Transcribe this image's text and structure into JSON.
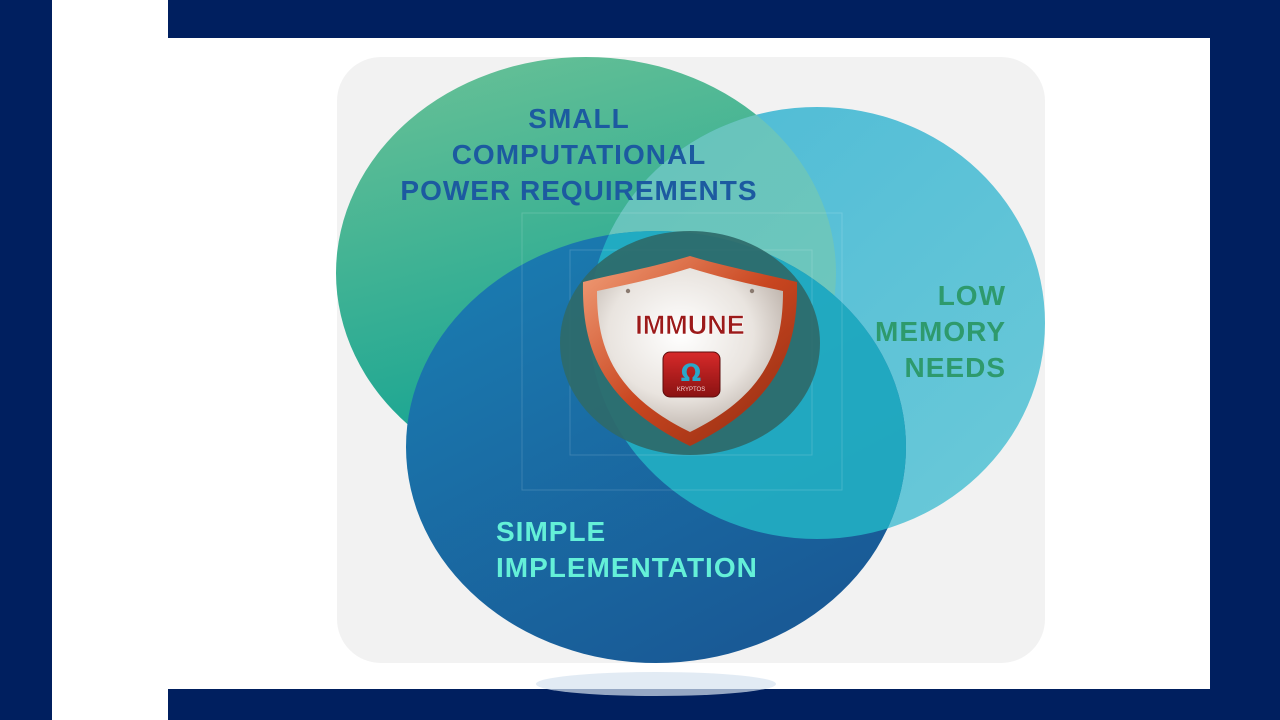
{
  "diagram": {
    "colors": {
      "frame": "#001f5f",
      "panel": "#f2f2f2",
      "circle_power_top": "#5fbe96",
      "circle_power_bottom": "#0fa394",
      "circle_memory": "#4ab9d2",
      "circle_simple": "#1a6fad",
      "shield_text": "#9c1a1a",
      "label_power": "#1c5aa0",
      "label_memory": "#2e9a6d",
      "label_simple": "#64f0d8"
    },
    "circles": [
      {
        "id": "power",
        "lines": [
          "SMALL",
          "COMPUTATIONAL",
          "POWER REQUIREMENTS"
        ]
      },
      {
        "id": "memory",
        "lines": [
          "LOW",
          "MEMORY",
          "NEEDS"
        ]
      },
      {
        "id": "simple",
        "lines": [
          "SIMPLE",
          "IMPLEMENTATION"
        ]
      }
    ],
    "center": {
      "label": "IMMUNE",
      "logo_symbol": "Ω",
      "logo_text": "KRYPTOS"
    }
  }
}
